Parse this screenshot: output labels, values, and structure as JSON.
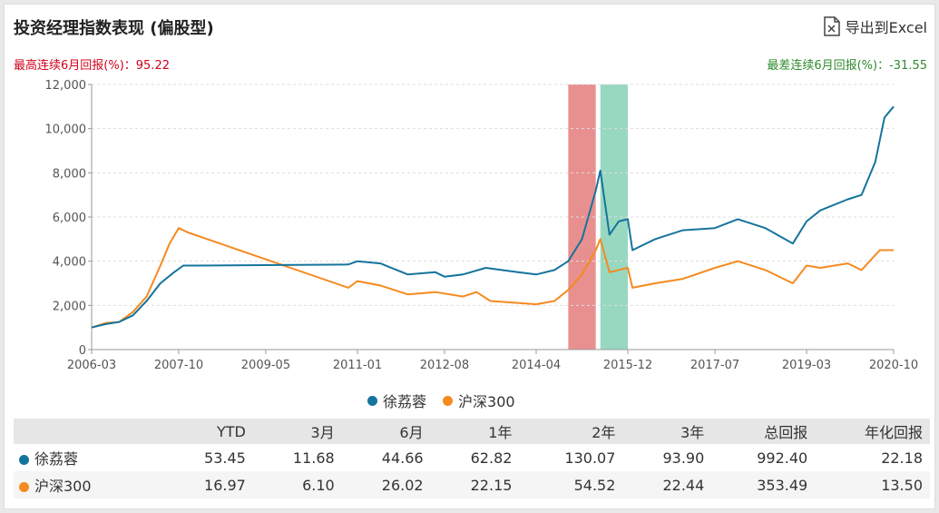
{
  "header": {
    "title": "投资经理指数表现 (偏股型)",
    "export_label": "导出到Excel",
    "best_6m": "最高连续6月回报(%)：95.22",
    "worst_6m": "最差连续6月回报(%)：-31.55"
  },
  "colors": {
    "manager": "#15749c",
    "index": "#f58a1f",
    "best_band": "#e8908f",
    "worst_band": "#98d8c0"
  },
  "chart_data": {
    "type": "line",
    "title": "",
    "xlabel": "",
    "ylabel": "",
    "x_ticks": [
      "2006-03",
      "2007-10",
      "2009-05",
      "2011-01",
      "2012-08",
      "2014-04",
      "2015-12",
      "2017-07",
      "2019-03",
      "2020-10"
    ],
    "y_ticks": [
      "0",
      "2,000",
      "4,000",
      "6,000",
      "8,000",
      "10,000",
      "12,000"
    ],
    "ylim": [
      0,
      12000
    ],
    "xlim": [
      "2006-03",
      "2020-10"
    ],
    "grid": "horizontal dashed",
    "legend_position": "bottom",
    "shaded_periods": [
      {
        "label": "best 6-month",
        "start": "2014-11",
        "end": "2015-05"
      },
      {
        "label": "worst 6-month",
        "start": "2015-06",
        "end": "2015-12"
      }
    ],
    "series": [
      {
        "name": "徐荔蓉",
        "points": [
          [
            "2006-03",
            1000
          ],
          [
            "2006-06",
            1150
          ],
          [
            "2006-09",
            1250
          ],
          [
            "2006-12",
            1550
          ],
          [
            "2007-03",
            2200
          ],
          [
            "2007-06",
            3000
          ],
          [
            "2007-09",
            3500
          ],
          [
            "2007-11",
            3800
          ],
          [
            "2008-02",
            3800
          ],
          [
            "2010-11",
            3850
          ],
          [
            "2011-01",
            4000
          ],
          [
            "2011-06",
            3900
          ],
          [
            "2011-12",
            3400
          ],
          [
            "2012-06",
            3500
          ],
          [
            "2012-08",
            3300
          ],
          [
            "2012-12",
            3400
          ],
          [
            "2013-05",
            3700
          ],
          [
            "2013-12",
            3500
          ],
          [
            "2014-04",
            3400
          ],
          [
            "2014-08",
            3600
          ],
          [
            "2014-11",
            4000
          ],
          [
            "2015-02",
            5000
          ],
          [
            "2015-05",
            7200
          ],
          [
            "2015-06",
            8100
          ],
          [
            "2015-08",
            5200
          ],
          [
            "2015-10",
            5800
          ],
          [
            "2015-12",
            5900
          ],
          [
            "2016-01",
            4500
          ],
          [
            "2016-06",
            5000
          ],
          [
            "2016-12",
            5400
          ],
          [
            "2017-07",
            5500
          ],
          [
            "2017-12",
            5900
          ],
          [
            "2018-06",
            5500
          ],
          [
            "2018-12",
            4800
          ],
          [
            "2019-03",
            5800
          ],
          [
            "2019-06",
            6300
          ],
          [
            "2019-12",
            6800
          ],
          [
            "2020-03",
            7000
          ],
          [
            "2020-06",
            8500
          ],
          [
            "2020-08",
            10500
          ],
          [
            "2020-10",
            11000
          ]
        ]
      },
      {
        "name": "沪深300",
        "points": [
          [
            "2006-03",
            1000
          ],
          [
            "2006-06",
            1200
          ],
          [
            "2006-09",
            1250
          ],
          [
            "2006-12",
            1700
          ],
          [
            "2007-03",
            2400
          ],
          [
            "2007-06",
            3800
          ],
          [
            "2007-08",
            4800
          ],
          [
            "2007-10",
            5500
          ],
          [
            "2007-12",
            5300
          ],
          [
            "2010-11",
            2800
          ],
          [
            "2011-01",
            3100
          ],
          [
            "2011-06",
            2900
          ],
          [
            "2011-12",
            2500
          ],
          [
            "2012-06",
            2600
          ],
          [
            "2012-12",
            2400
          ],
          [
            "2013-03",
            2600
          ],
          [
            "2013-06",
            2200
          ],
          [
            "2014-04",
            2050
          ],
          [
            "2014-08",
            2200
          ],
          [
            "2014-11",
            2700
          ],
          [
            "2015-02",
            3400
          ],
          [
            "2015-05",
            4500
          ],
          [
            "2015-06",
            5000
          ],
          [
            "2015-08",
            3500
          ],
          [
            "2015-12",
            3700
          ],
          [
            "2016-01",
            2800
          ],
          [
            "2016-06",
            3000
          ],
          [
            "2016-12",
            3200
          ],
          [
            "2017-07",
            3700
          ],
          [
            "2017-12",
            4000
          ],
          [
            "2018-06",
            3600
          ],
          [
            "2018-12",
            3000
          ],
          [
            "2019-03",
            3800
          ],
          [
            "2019-06",
            3700
          ],
          [
            "2019-12",
            3900
          ],
          [
            "2020-03",
            3600
          ],
          [
            "2020-07",
            4500
          ],
          [
            "2020-10",
            4500
          ]
        ]
      }
    ]
  },
  "table": {
    "headers": [
      "",
      "YTD",
      "3月",
      "6月",
      "1年",
      "2年",
      "3年",
      "总回报",
      "年化回报"
    ],
    "rows": [
      {
        "name": "徐荔蓉",
        "values": [
          "53.45",
          "11.68",
          "44.66",
          "62.82",
          "130.07",
          "93.90",
          "992.40",
          "22.18"
        ]
      },
      {
        "name": "沪深300",
        "values": [
          "16.97",
          "6.10",
          "26.02",
          "22.15",
          "54.52",
          "22.44",
          "353.49",
          "13.50"
        ]
      }
    ]
  }
}
